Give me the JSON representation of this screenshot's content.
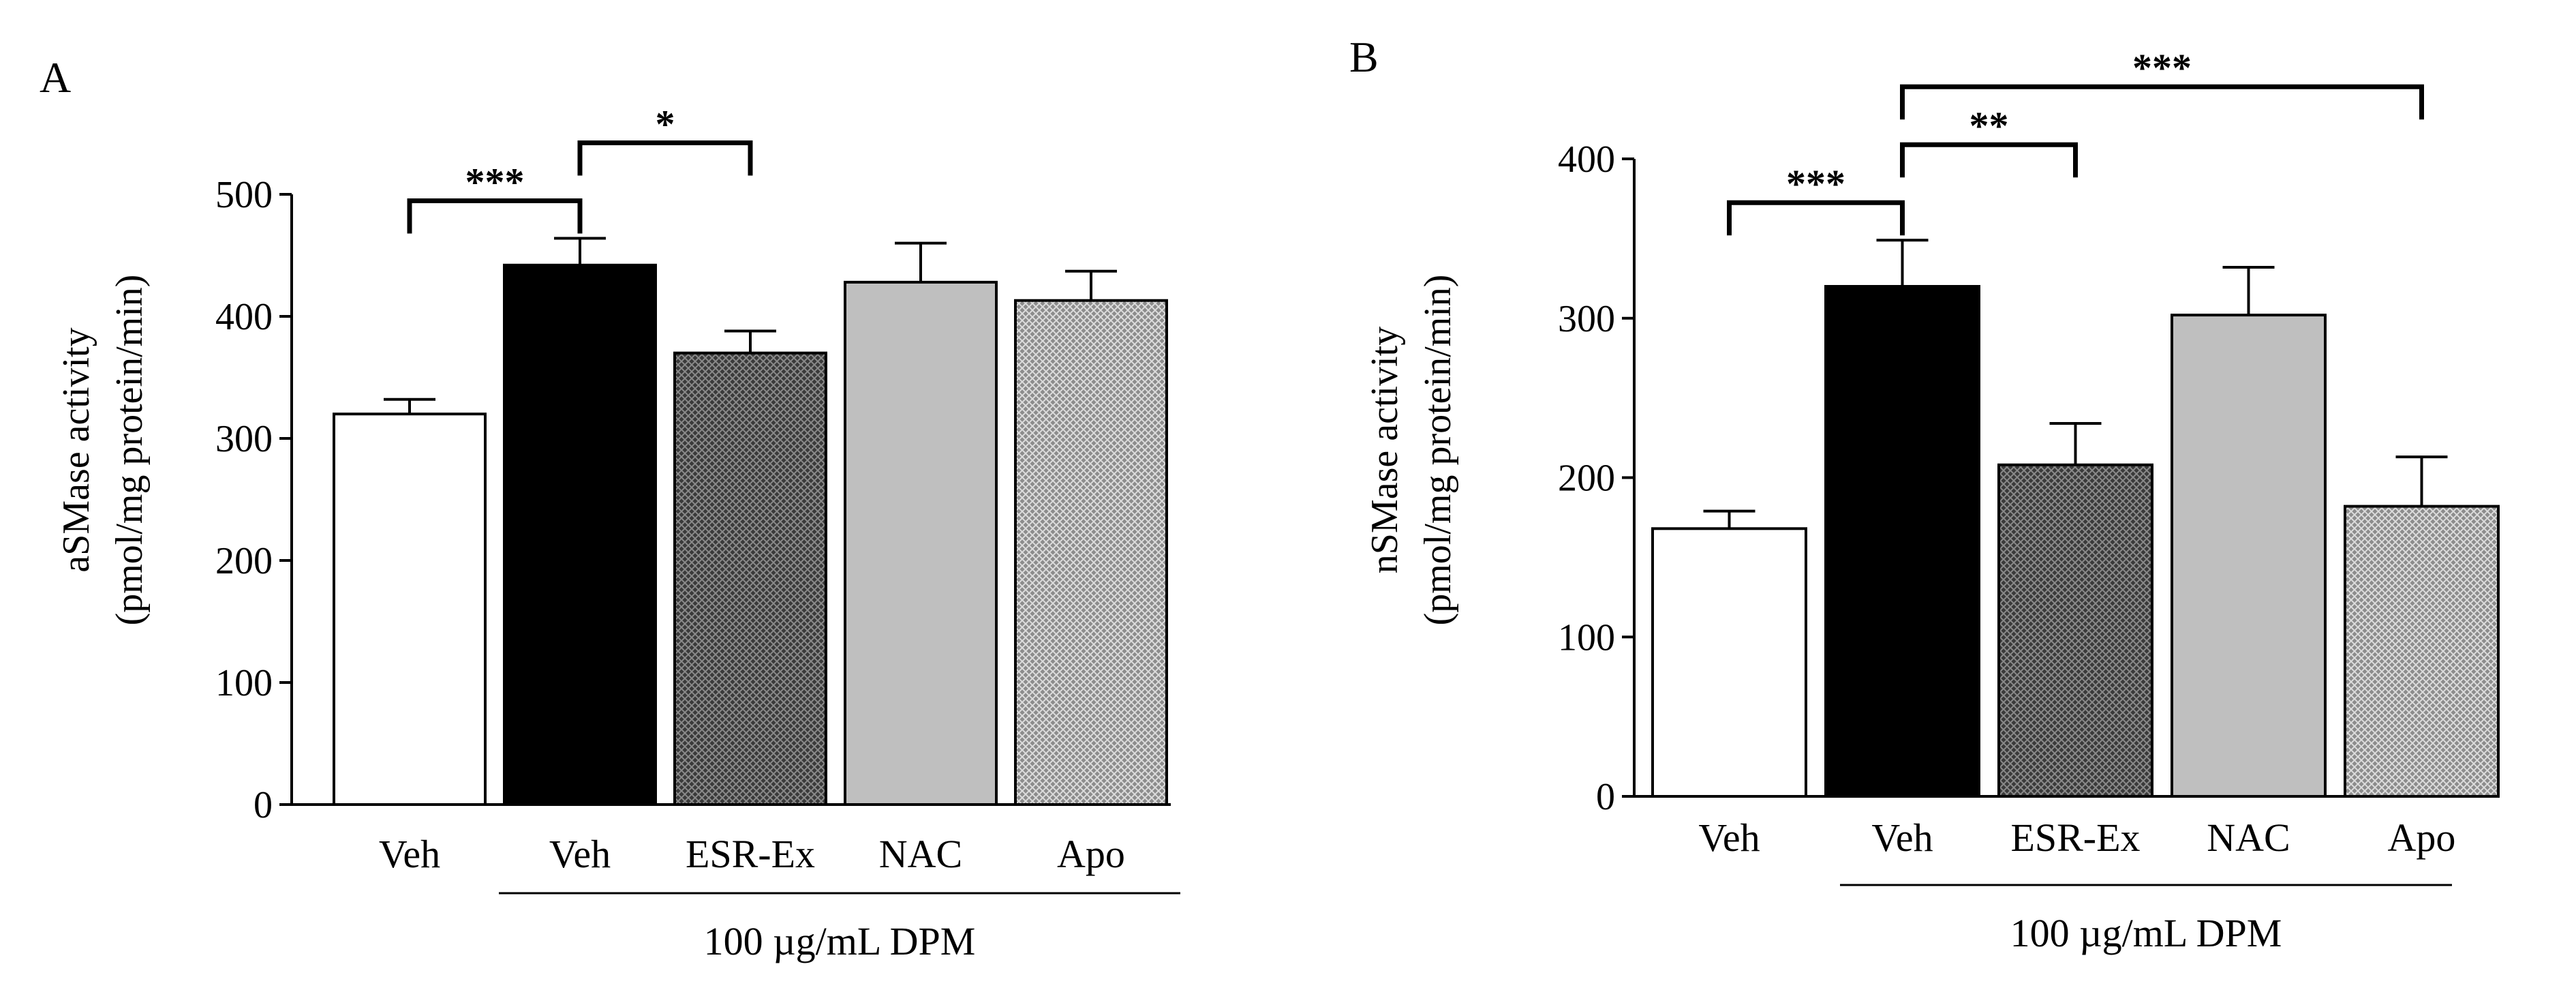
{
  "chart_data": [
    {
      "panel_label": "A",
      "type": "bar",
      "ylabel_line1": "aSMase activity",
      "ylabel_line2": "(pmol/mg protein/min)",
      "ylim": [
        0,
        500
      ],
      "yticks": [
        0,
        100,
        200,
        300,
        400,
        500
      ],
      "categories": [
        "Veh",
        "Veh",
        "ESR-Ex",
        "NAC",
        "Apo"
      ],
      "values": [
        320,
        442,
        370,
        428,
        413
      ],
      "errors": [
        12,
        22,
        18,
        32,
        24
      ],
      "fills": [
        "#ffffff",
        "#000000",
        "pattern:dark",
        "#bfbfbf",
        "pattern:light"
      ],
      "group_label": "100 µg/mL DPM",
      "group_start": 1,
      "group_end": 4,
      "significance": [
        {
          "from": 0,
          "to": 1,
          "label": "***"
        },
        {
          "from": 1,
          "to": 2,
          "label": "*"
        }
      ]
    },
    {
      "panel_label": "B",
      "type": "bar",
      "ylabel_line1": "nSMase activity",
      "ylabel_line2": "(pmol/mg protein/min)",
      "ylim": [
        0,
        400
      ],
      "yticks": [
        0,
        100,
        200,
        300,
        400
      ],
      "categories": [
        "Veh",
        "Veh",
        "ESR-Ex",
        "NAC",
        "Apo"
      ],
      "values": [
        168,
        320,
        208,
        302,
        182
      ],
      "errors": [
        11,
        29,
        26,
        30,
        31
      ],
      "fills": [
        "#ffffff",
        "#000000",
        "pattern:dark",
        "#bfbfbf",
        "pattern:light"
      ],
      "group_label": "100 µg/mL DPM",
      "group_start": 1,
      "group_end": 4,
      "significance": [
        {
          "from": 0,
          "to": 1,
          "label": "***"
        },
        {
          "from": 1,
          "to": 2,
          "label": "**"
        },
        {
          "from": 1,
          "to": 4,
          "label": "***"
        }
      ]
    }
  ]
}
